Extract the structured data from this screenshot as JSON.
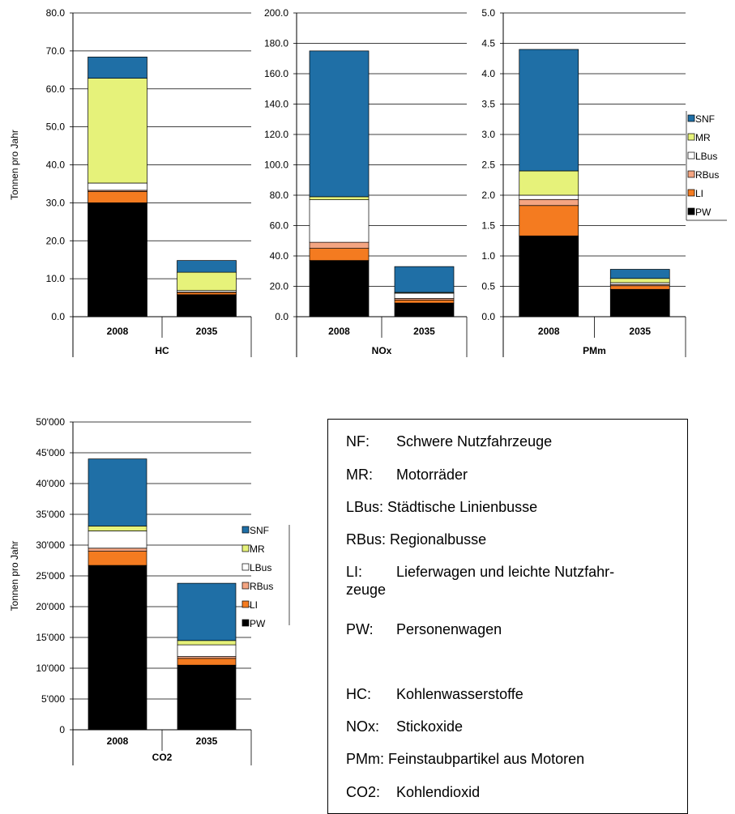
{
  "colors": {
    "PW": "#000000",
    "LI": "#f47b20",
    "RBus": "#f4a582",
    "LBus": "#ffffff",
    "MR": "#e6f27a",
    "SNF": "#1f6fa6"
  },
  "y_axis_label": "Tonnen pro Jahr",
  "chart_data": [
    {
      "type": "bar",
      "stacked": true,
      "group_label": "HC",
      "categories": [
        "2008",
        "2035"
      ],
      "ylabel": "Tonnen pro Jahr",
      "ylim": [
        0,
        80
      ],
      "yticks": [
        "0.0",
        "10.0",
        "20.0",
        "30.0",
        "40.0",
        "50.0",
        "60.0",
        "70.0",
        "80.0"
      ],
      "series": [
        {
          "name": "PW",
          "values": [
            30.0,
            5.8
          ]
        },
        {
          "name": "LI",
          "values": [
            3.0,
            0.6
          ]
        },
        {
          "name": "RBus",
          "values": [
            0.3,
            0.1
          ]
        },
        {
          "name": "LBus",
          "values": [
            1.9,
            0.4
          ]
        },
        {
          "name": "MR",
          "values": [
            27.6,
            4.8
          ]
        },
        {
          "name": "SNF",
          "values": [
            5.6,
            3.1
          ]
        }
      ],
      "legend": "none"
    },
    {
      "type": "bar",
      "stacked": true,
      "group_label": "NOx",
      "categories": [
        "2008",
        "2035"
      ],
      "ylim": [
        0,
        200
      ],
      "yticks": [
        "0.0",
        "20.0",
        "40.0",
        "60.0",
        "80.0",
        "100.0",
        "120.0",
        "140.0",
        "160.0",
        "180.0",
        "200.0"
      ],
      "series": [
        {
          "name": "PW",
          "values": [
            37,
            9
          ]
        },
        {
          "name": "LI",
          "values": [
            8,
            2
          ]
        },
        {
          "name": "RBus",
          "values": [
            4,
            1
          ]
        },
        {
          "name": "LBus",
          "values": [
            28,
            3.5
          ]
        },
        {
          "name": "MR",
          "values": [
            2,
            0.5
          ]
        },
        {
          "name": "SNF",
          "values": [
            96,
            17
          ]
        }
      ],
      "legend": "none"
    },
    {
      "type": "bar",
      "stacked": true,
      "group_label": "PMm",
      "categories": [
        "2008",
        "2035"
      ],
      "ylim": [
        0,
        5
      ],
      "yticks": [
        "0.0",
        "0.5",
        "1.0",
        "1.5",
        "2.0",
        "2.5",
        "3.0",
        "3.5",
        "4.0",
        "4.5",
        "5.0"
      ],
      "series": [
        {
          "name": "PW",
          "values": [
            1.33,
            0.45
          ]
        },
        {
          "name": "LI",
          "values": [
            0.5,
            0.06
          ]
        },
        {
          "name": "RBus",
          "values": [
            0.1,
            0.02
          ]
        },
        {
          "name": "LBus",
          "values": [
            0.07,
            0.03
          ]
        },
        {
          "name": "MR",
          "values": [
            0.4,
            0.07
          ]
        },
        {
          "name": "SNF",
          "values": [
            2.0,
            0.15
          ]
        }
      ],
      "legend": "right"
    },
    {
      "type": "bar",
      "stacked": true,
      "group_label": "CO2",
      "categories": [
        "2008",
        "2035"
      ],
      "ylabel": "Tonnen pro Jahr",
      "ylim": [
        0,
        50000
      ],
      "yticks": [
        "0",
        "5'000",
        "10'000",
        "15'000",
        "20'000",
        "25'000",
        "30'000",
        "35'000",
        "40'000",
        "45'000",
        "50'000"
      ],
      "series": [
        {
          "name": "PW",
          "values": [
            26700,
            10500
          ]
        },
        {
          "name": "LI",
          "values": [
            2300,
            1100
          ]
        },
        {
          "name": "RBus",
          "values": [
            500,
            300
          ]
        },
        {
          "name": "LBus",
          "values": [
            2800,
            1900
          ]
        },
        {
          "name": "MR",
          "values": [
            800,
            700
          ]
        },
        {
          "name": "SNF",
          "values": [
            10900,
            9300
          ]
        }
      ],
      "legend": "right"
    }
  ],
  "glossary": [
    {
      "abbr": "NF:",
      "text": "Schwere Nutzfahrzeuge"
    },
    {
      "abbr": "MR:",
      "text": "Motorräder"
    },
    {
      "abbr": "LBus:",
      "text": "Städtische Linienbusse"
    },
    {
      "abbr": "RBus:",
      "text": "Regionalbusse"
    },
    {
      "abbr": "LI:",
      "text": "Lieferwagen und leichte Nutzfahr-",
      "text2": "zeuge"
    },
    {
      "abbr": "PW:",
      "text": "Personenwagen"
    },
    {
      "abbr": "HC:",
      "text": "Kohlenwasserstoffe"
    },
    {
      "abbr": "NOx:",
      "text": "Stickoxide"
    },
    {
      "abbr": "PMm:",
      "text": "Feinstaubpartikel aus Motoren"
    },
    {
      "abbr": "CO2:",
      "text": "Kohlendioxid"
    }
  ]
}
